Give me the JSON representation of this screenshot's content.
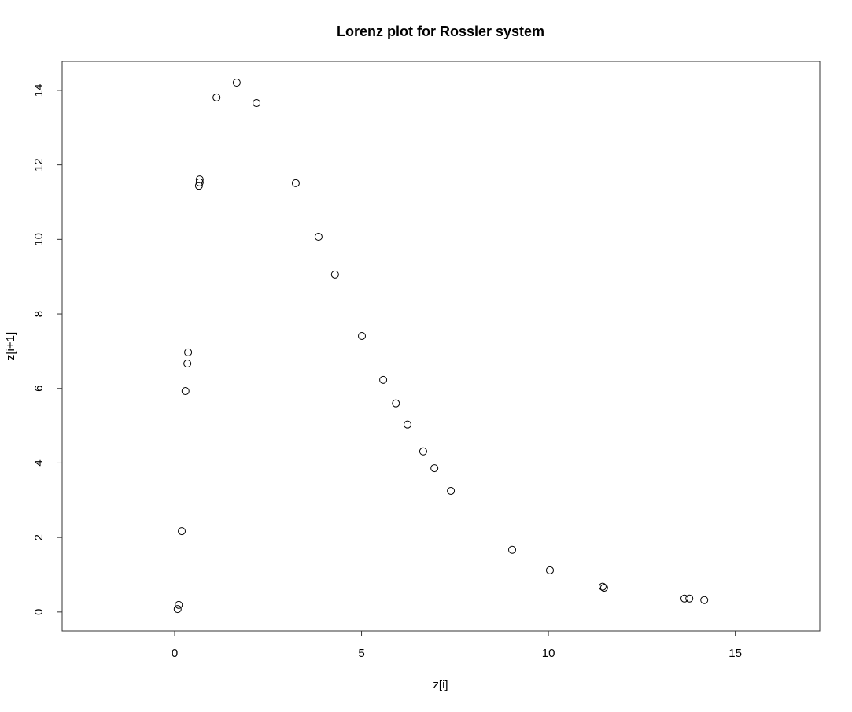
{
  "chart_data": {
    "type": "scatter",
    "title": "Lorenz plot for Rossler system",
    "x_label": "z[i]",
    "y_label": "z[i+1]",
    "x": [
      1.66,
      1.12,
      2.19,
      0.67,
      0.67,
      0.65,
      3.24,
      3.85,
      4.29,
      5.01,
      0.36,
      0.34,
      0.29,
      5.58,
      5.92,
      6.23,
      6.65,
      6.95,
      7.39,
      0.19,
      9.03,
      10.04,
      11.45,
      11.49,
      13.64,
      13.77,
      14.17,
      0.11,
      0.08
    ],
    "values": [
      14.21,
      13.81,
      13.66,
      11.61,
      11.53,
      11.44,
      11.51,
      10.07,
      9.06,
      7.41,
      6.97,
      6.67,
      5.93,
      6.23,
      5.6,
      5.03,
      4.31,
      3.86,
      3.25,
      2.17,
      1.67,
      1.12,
      0.68,
      0.65,
      0.36,
      0.36,
      0.32,
      0.19,
      0.08
    ],
    "color": "#000000",
    "xlim": [
      -3.01,
      17.26
    ],
    "ylim": [
      -0.51,
      14.78
    ],
    "xticks": [
      0,
      5,
      10,
      15
    ],
    "yticks": [
      0,
      2,
      4,
      6,
      8,
      10,
      12,
      14
    ]
  }
}
